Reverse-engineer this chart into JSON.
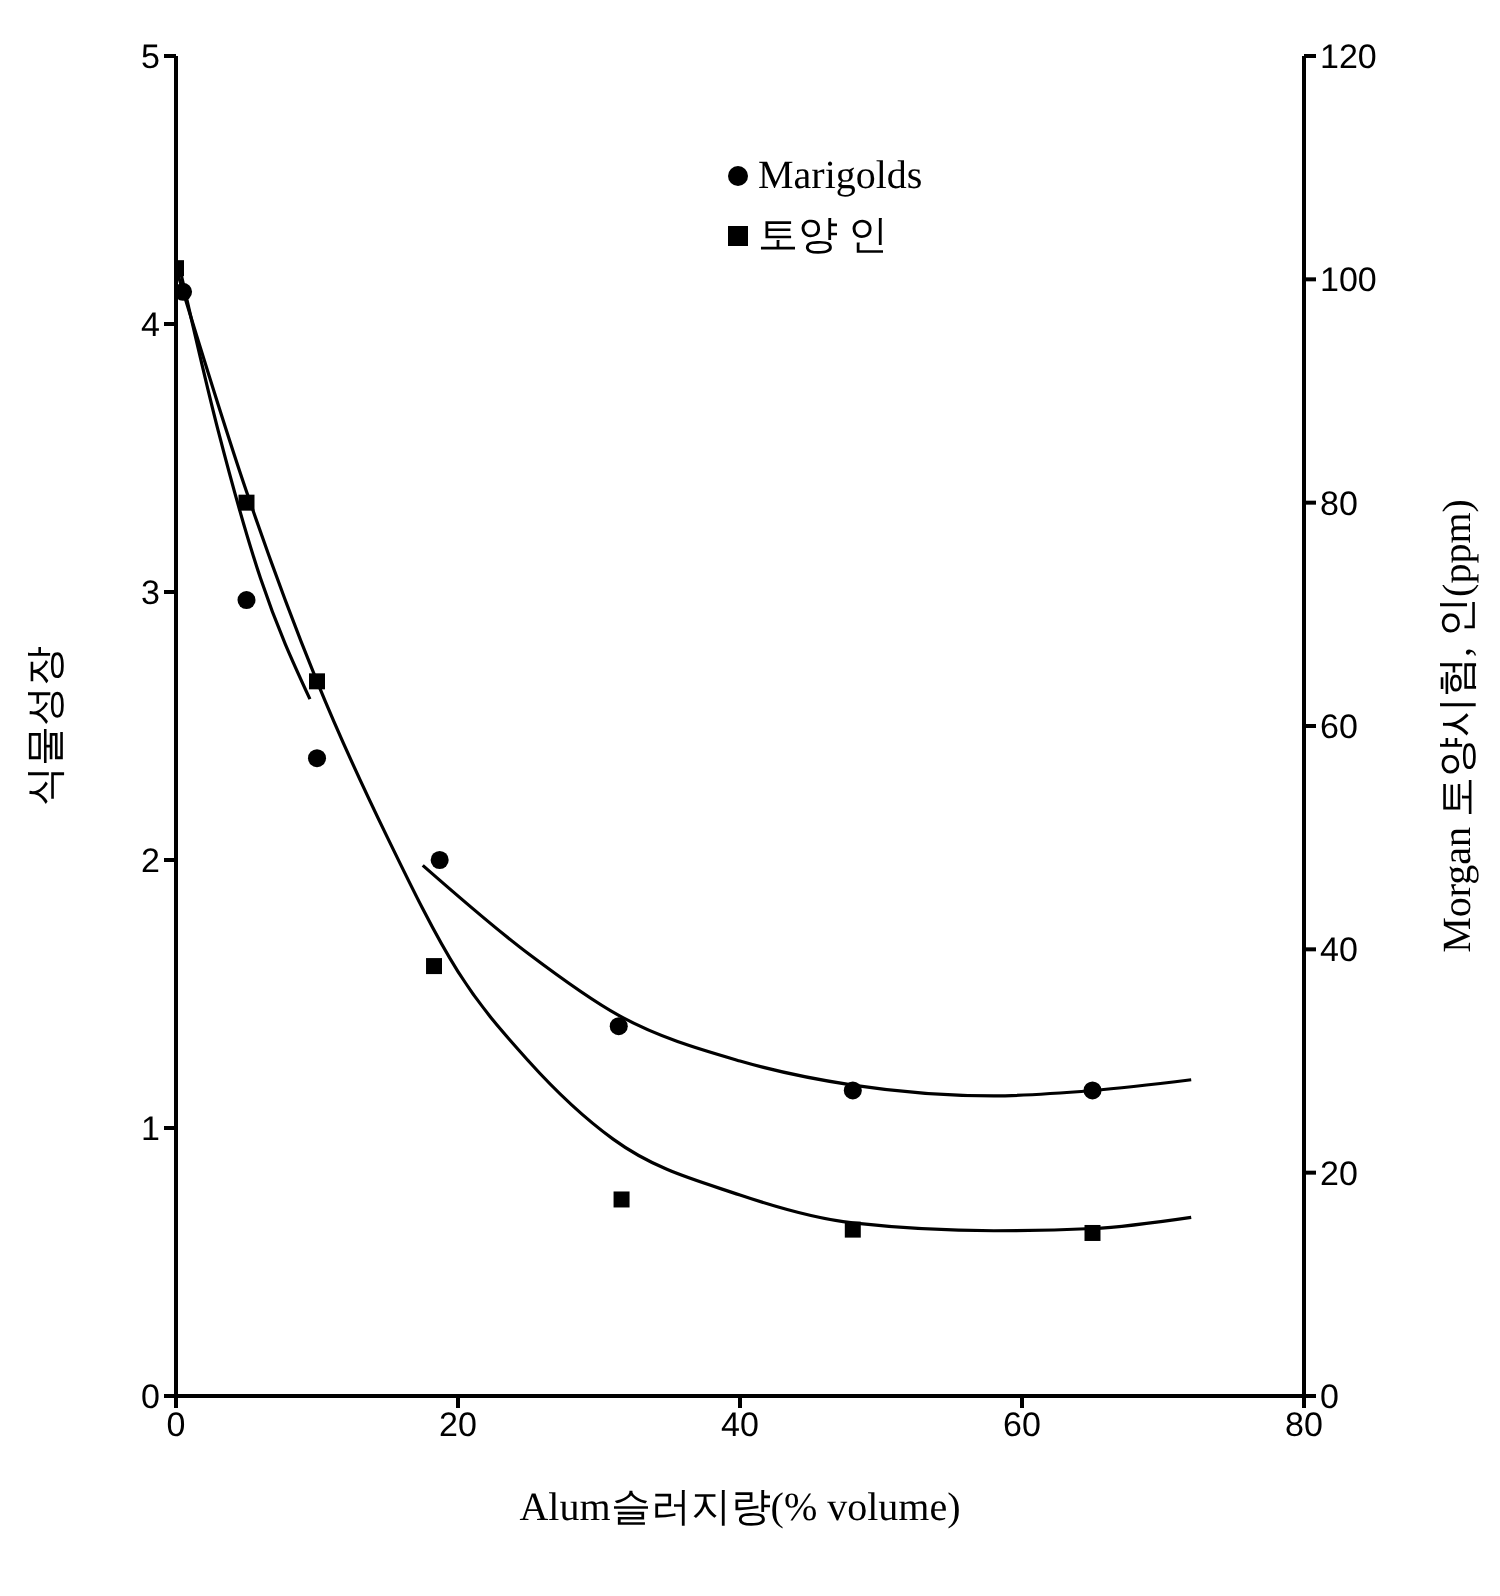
{
  "chart_data": {
    "type": "scatter",
    "xlabel": "Alum슬러지량(% volume)",
    "ylabel": "식물성장",
    "y2label": "Morgan 토양시험, 인(ppm)",
    "xlim": [
      0,
      80
    ],
    "xticks": [
      0,
      20,
      40,
      60,
      80
    ],
    "ylim": [
      0,
      5
    ],
    "yticks": [
      0,
      1,
      2,
      3,
      4,
      5
    ],
    "y2lim": [
      0,
      120
    ],
    "y2ticks": [
      0,
      20,
      40,
      60,
      80,
      100,
      120
    ],
    "legend": "top",
    "series": [
      {
        "name": "Marigolds",
        "marker": "circle",
        "color": "#000000",
        "x": [
          0.5,
          5,
          10,
          18.7,
          31.4,
          48,
          65
        ],
        "values": [
          4.12,
          2.97,
          2.38,
          2.0,
          1.38,
          1.14,
          1.14
        ]
      },
      {
        "name": "토양 인",
        "marker": "square",
        "axis": "y2",
        "color": "#000000",
        "x": [
          0,
          5,
          10,
          18.3,
          31.6,
          48,
          65
        ],
        "values": [
          101,
          80,
          64,
          38.5,
          17.6,
          14.9,
          14.6
        ]
      },
      {
        "type": "line",
        "marker": "none",
        "color": "#000000",
        "x": [
          0.3,
          3,
          6,
          9.5
        ],
        "values": [
          4.2,
          3.6,
          3.05,
          2.6
        ]
      },
      {
        "type": "line",
        "marker": "none",
        "color": "#000000",
        "x": [
          17.5,
          25,
          31.4,
          40,
          48,
          58,
          65,
          72
        ],
        "values": [
          1.98,
          1.65,
          1.42,
          1.25,
          1.16,
          1.12,
          1.14,
          1.18
        ]
      },
      {
        "type": "line",
        "marker": "none",
        "axis": "y2",
        "color": "#000000",
        "x": [
          0,
          5,
          10,
          15,
          20,
          25,
          31,
          40,
          48,
          58,
          65,
          72
        ],
        "values": [
          101,
          81,
          64,
          50,
          38,
          30,
          23,
          18,
          15.5,
          14.8,
          15,
          16
        ]
      }
    ]
  }
}
